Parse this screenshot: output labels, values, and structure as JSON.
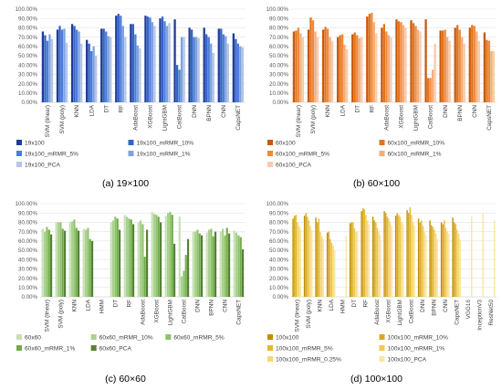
{
  "chart_data": [
    {
      "type": "bar",
      "caption": "(a) 19×100",
      "ylim": [
        0,
        100
      ],
      "yticks": [
        "0.00%",
        "10.00%",
        "20.00%",
        "30.00%",
        "40.00%",
        "50.00%",
        "60.00%",
        "70.00%",
        "80.00%",
        "90.00%",
        "100.00%"
      ],
      "grid": true,
      "legend_placement": "bottom",
      "categories": [
        "SVM (linear)",
        "SVM (poly)",
        "KNN",
        "LDA",
        "DT",
        "RF",
        "AdaBoost",
        "XGBoost",
        "LightGBM",
        "CatBoost",
        "DNN",
        "BPNN",
        "CNN",
        "CapsNET"
      ],
      "series": [
        {
          "name": "19x100",
          "color": "#1f3d99",
          "values": [
            76,
            78,
            84,
            67,
            79,
            93,
            84,
            93,
            90,
            89,
            80,
            80,
            79,
            74
          ]
        },
        {
          "name": "19x100_mRMR_10%",
          "color": "#3564c8",
          "values": [
            72,
            82,
            82,
            63,
            79,
            95,
            84,
            92,
            92,
            40,
            78,
            73,
            79,
            68
          ]
        },
        {
          "name": "19x100_mRMR_5%",
          "color": "#4b7ed8",
          "values": [
            66,
            78,
            78,
            55,
            76,
            93,
            73,
            91,
            87,
            35,
            70,
            70,
            73,
            63
          ]
        },
        {
          "name": "19x100_mRMR_1%",
          "color": "#7fa2df",
          "values": [
            73,
            79,
            76,
            60,
            71,
            82,
            61,
            86,
            82,
            70,
            70,
            63,
            71,
            60
          ]
        },
        {
          "name": "19x100_PCA",
          "color": "#b4c6e7",
          "values": [
            68,
            64,
            63,
            50,
            70,
            70,
            58,
            82,
            85,
            70,
            69,
            53,
            63,
            59
          ]
        }
      ]
    },
    {
      "type": "bar",
      "caption": "(b) 60×100",
      "ylim": [
        0,
        100
      ],
      "yticks": [
        "0.00%",
        "10.00%",
        "20.00%",
        "30.00%",
        "40.00%",
        "50.00%",
        "60.00%",
        "70.00%",
        "80.00%",
        "90.00%",
        "100.00%"
      ],
      "grid": true,
      "legend_placement": "bottom",
      "categories": [
        "SVM (linear)",
        "SVM (poly)",
        "KNN",
        "LDA",
        "DT",
        "RF",
        "AdaBoost",
        "XGBoost",
        "LightGBM",
        "CatBoost",
        "DNN",
        "BPNN",
        "CNN",
        "CapsNET"
      ],
      "series": [
        {
          "name": "60x100",
          "color": "#c55a11",
          "values": [
            76,
            78,
            78,
            70,
            73,
            92,
            80,
            89,
            88,
            89,
            77,
            80,
            80,
            75
          ]
        },
        {
          "name": "60x100_mRMR_10%",
          "color": "#e2761b",
          "values": [
            77,
            91,
            81,
            72,
            75,
            95,
            84,
            87,
            85,
            26,
            77,
            83,
            83,
            67
          ]
        },
        {
          "name": "60x100_mRMR_5%",
          "color": "#f08a3d",
          "values": [
            80,
            88,
            79,
            73,
            72,
            96,
            76,
            86,
            82,
            26,
            78,
            78,
            82,
            66
          ]
        },
        {
          "name": "60x100_mRMR_1%",
          "color": "#f4ae7a",
          "values": [
            74,
            76,
            70,
            62,
            69,
            86,
            72,
            83,
            78,
            35,
            70,
            70,
            76,
            55
          ]
        },
        {
          "name": "60x100_PCA",
          "color": "#f8cbad",
          "values": [
            70,
            70,
            66,
            57,
            70,
            74,
            70,
            80,
            76,
            63,
            66,
            63,
            66,
            55
          ]
        }
      ]
    },
    {
      "type": "bar",
      "caption": "(c) 60×60",
      "ylim": [
        0,
        100
      ],
      "yticks": [
        "0.00%",
        "10.00%",
        "20.00%",
        "30.00%",
        "40.00%",
        "50.00%",
        "60.00%",
        "70.00%",
        "80.00%",
        "90.00%",
        "100.00%"
      ],
      "grid": true,
      "legend_placement": "bottom",
      "categories": [
        "SVM (linear)",
        "SVM (poly)",
        "KNN",
        "LDA",
        "HMM",
        "DT",
        "RF",
        "AdaBoost",
        "XGBoost",
        "LightGBM",
        "CatBoost",
        "DNN",
        "BPNN",
        "CNN",
        "CapsNET"
      ],
      "series": [
        {
          "name": "60x60",
          "color": "#c5e0b4",
          "values": [
            73,
            80,
            80,
            73,
            0,
            80,
            88,
            80,
            91,
            87,
            86,
            70,
            69,
            70,
            71
          ]
        },
        {
          "name": "60x60_mRMR_10%",
          "color": "#a9d18e",
          "values": [
            70,
            80,
            81,
            72,
            0,
            82,
            86,
            82,
            89,
            90,
            22,
            70,
            72,
            73,
            69
          ]
        },
        {
          "name": "60x60_mRMR_5%",
          "color": "#8fc26a",
          "values": [
            75,
            80,
            83,
            74,
            0,
            86,
            84,
            78,
            88,
            91,
            28,
            72,
            73,
            66,
            66
          ]
        },
        {
          "name": "60x60_mRMR_1%",
          "color": "#70ad47",
          "values": [
            72,
            73,
            74,
            62,
            0,
            84,
            83,
            43,
            86,
            88,
            45,
            68,
            65,
            74,
            64
          ]
        },
        {
          "name": "60x60_PCA",
          "color": "#548235",
          "values": [
            67,
            71,
            71,
            60,
            0,
            72,
            78,
            72,
            80,
            57,
            62,
            66,
            70,
            68,
            51
          ]
        }
      ]
    },
    {
      "type": "bar",
      "caption": "(d) 100×100",
      "ylim": [
        0,
        100
      ],
      "yticks": [
        "0.00%",
        "10.00%",
        "20.00%",
        "30.00%",
        "40.00%",
        "50.00%",
        "60.00%",
        "70.00%",
        "80.00%",
        "90.00%",
        "100.00%"
      ],
      "grid": true,
      "legend_placement": "bottom",
      "categories": [
        "SVM (linear)",
        "SVM (poly)",
        "KNN",
        "LDA",
        "HMM",
        "DT",
        "RF",
        "AdaBoost",
        "XGBoost",
        "LightGBM",
        "CatBoost",
        "DNN",
        "BPNN",
        "CNN",
        "CapsNET",
        "VGG16",
        "InceptionV3",
        "ResNet50"
      ],
      "series": [
        {
          "name": "100x100",
          "color": "#bf9000",
          "values": [
            84,
            87,
            85,
            69,
            0,
            79,
            92,
            86,
            92,
            87,
            93,
            84,
            82,
            80,
            85,
            0,
            0,
            0
          ]
        },
        {
          "name": "100x100_mRMR_10%",
          "color": "#d4a72c",
          "values": [
            87,
            90,
            80,
            70,
            0,
            80,
            95,
            82,
            90,
            90,
            90,
            80,
            77,
            78,
            80,
            0,
            0,
            0
          ]
        },
        {
          "name": "100x100_mRMR_5%",
          "color": "#e6b830",
          "values": [
            88,
            86,
            84,
            62,
            0,
            80,
            94,
            80,
            86,
            88,
            96,
            82,
            75,
            82,
            78,
            0,
            0,
            0
          ]
        },
        {
          "name": "100x100_mRMR_1%",
          "color": "#f2c84b",
          "values": [
            80,
            82,
            70,
            58,
            0,
            74,
            88,
            74,
            84,
            86,
            88,
            76,
            72,
            74,
            72,
            0,
            0,
            0
          ]
        },
        {
          "name": "100x100_mRMR_0.25%",
          "color": "#f7d878",
          "values": [
            76,
            76,
            65,
            55,
            0,
            70,
            82,
            70,
            80,
            80,
            80,
            70,
            68,
            70,
            68,
            0,
            0,
            0
          ]
        },
        {
          "name": "100x100_PCA",
          "color": "#fbe6a2",
          "values": [
            74,
            72,
            62,
            50,
            65,
            70,
            78,
            66,
            76,
            78,
            76,
            66,
            62,
            68,
            62,
            86,
            90,
            82
          ]
        }
      ]
    }
  ]
}
